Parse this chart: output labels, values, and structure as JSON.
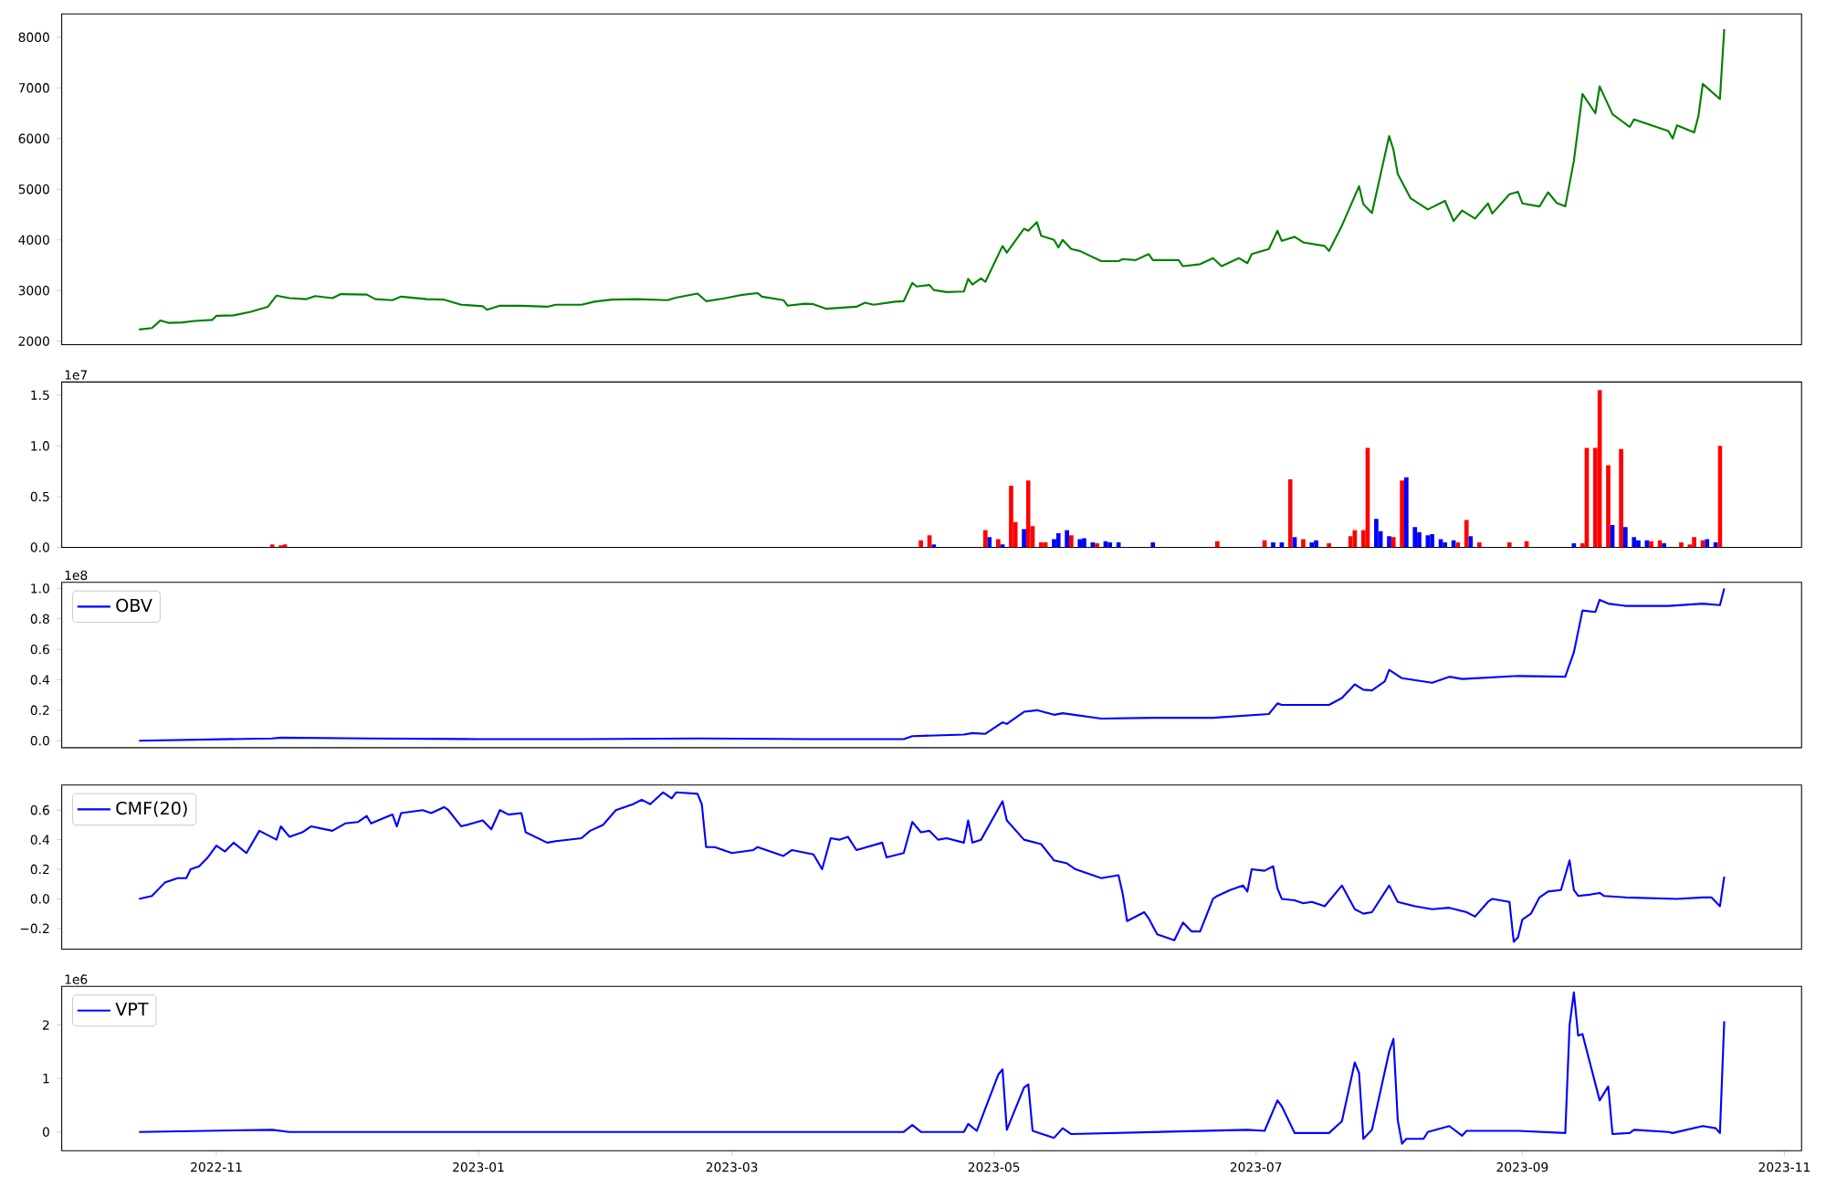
{
  "chart_data": [
    {
      "type": "line",
      "xlim": [
        "2022-09-26",
        "2023-11-05"
      ],
      "ylim": [
        1930,
        8460
      ],
      "yticks": [
        2000,
        3000,
        4000,
        5000,
        6000,
        7000,
        8000
      ],
      "tick_labels": "y",
      "x": [
        "2022-10-14",
        "2022-10-17",
        "2022-10-19",
        "2022-10-21",
        "2022-10-24",
        "2022-10-27",
        "2022-10-31",
        "2022-11-01",
        "2022-11-05",
        "2022-11-09",
        "2022-11-13",
        "2022-11-15",
        "2022-11-18",
        "2022-11-22",
        "2022-11-24",
        "2022-11-28",
        "2022-11-30",
        "2022-12-06",
        "2022-12-08",
        "2022-12-12",
        "2022-12-14",
        "2022-12-20",
        "2022-12-24",
        "2022-12-28",
        "2023-01-02",
        "2023-01-03",
        "2023-01-06",
        "2023-01-11",
        "2023-01-17",
        "2023-01-19",
        "2023-01-25",
        "2023-01-28",
        "2023-02-01",
        "2023-02-07",
        "2023-02-14",
        "2023-02-16",
        "2023-02-21",
        "2023-02-23",
        "2023-02-27",
        "2023-03-03",
        "2023-03-07",
        "2023-03-08",
        "2023-03-13",
        "2023-03-14",
        "2023-03-18",
        "2023-03-20",
        "2023-03-23",
        "2023-03-30",
        "2023-04-01",
        "2023-04-03",
        "2023-04-08",
        "2023-04-10",
        "2023-04-12",
        "2023-04-13",
        "2023-04-16",
        "2023-04-17",
        "2023-04-20",
        "2023-04-24",
        "2023-04-25",
        "2023-04-26",
        "2023-04-28",
        "2023-04-29",
        "2023-05-03",
        "2023-05-04",
        "2023-05-08",
        "2023-05-09",
        "2023-05-11",
        "2023-05-12",
        "2023-05-15",
        "2023-05-16",
        "2023-05-17",
        "2023-05-19",
        "2023-05-21",
        "2023-05-26",
        "2023-05-30",
        "2023-05-31",
        "2023-06-03",
        "2023-06-06",
        "2023-06-07",
        "2023-06-13",
        "2023-06-14",
        "2023-06-18",
        "2023-06-21",
        "2023-06-23",
        "2023-06-27",
        "2023-06-29",
        "2023-06-30",
        "2023-07-04",
        "2023-07-06",
        "2023-07-07",
        "2023-07-10",
        "2023-07-12",
        "2023-07-17",
        "2023-07-18",
        "2023-07-21",
        "2023-07-25",
        "2023-07-26",
        "2023-07-28",
        "2023-08-01",
        "2023-08-02",
        "2023-08-03",
        "2023-08-06",
        "2023-08-10",
        "2023-08-14",
        "2023-08-16",
        "2023-08-18",
        "2023-08-21",
        "2023-08-24",
        "2023-08-25",
        "2023-08-29",
        "2023-08-31",
        "2023-09-01",
        "2023-09-05",
        "2023-09-07",
        "2023-09-09",
        "2023-09-11",
        "2023-09-13",
        "2023-09-15",
        "2023-09-18",
        "2023-09-19",
        "2023-09-22",
        "2023-09-26",
        "2023-09-27",
        "2023-10-05",
        "2023-10-06",
        "2023-10-07",
        "2023-10-11",
        "2023-10-12",
        "2023-10-13",
        "2023-10-17",
        "2023-10-18"
      ],
      "series": [
        {
          "color": "#008000",
          "values": [
            2230,
            2260,
            2410,
            2360,
            2370,
            2400,
            2420,
            2500,
            2510,
            2580,
            2680,
            2900,
            2850,
            2830,
            2890,
            2850,
            2930,
            2920,
            2830,
            2810,
            2880,
            2830,
            2820,
            2720,
            2690,
            2620,
            2700,
            2700,
            2680,
            2720,
            2720,
            2780,
            2820,
            2830,
            2810,
            2860,
            2940,
            2790,
            2840,
            2910,
            2950,
            2880,
            2810,
            2700,
            2740,
            2730,
            2640,
            2680,
            2760,
            2720,
            2780,
            2790,
            3150,
            3080,
            3110,
            3010,
            2970,
            2980,
            3230,
            3120,
            3240,
            3170,
            3880,
            3750,
            4220,
            4180,
            4350,
            4080,
            4000,
            3850,
            4000,
            3820,
            3780,
            3580,
            3580,
            3620,
            3600,
            3720,
            3600,
            3600,
            3480,
            3520,
            3640,
            3480,
            3640,
            3540,
            3720,
            3820,
            4180,
            3980,
            4060,
            3950,
            3880,
            3780,
            4280,
            5060,
            4700,
            4530,
            6050,
            5780,
            5300,
            4820,
            4600,
            4770,
            4370,
            4580,
            4420,
            4720,
            4520,
            4900,
            4950,
            4720,
            4660,
            4940,
            4730,
            4660,
            5560,
            6880,
            6500,
            7030,
            6480,
            6230,
            6380,
            6150,
            6000,
            6260,
            6120,
            6450,
            7080,
            6780,
            8160
          ]
        }
      ]
    },
    {
      "type": "bar",
      "xlim": [
        "2022-09-26",
        "2023-11-05"
      ],
      "ylim": [
        0,
        1.63
      ],
      "tick_labels": "y",
      "yticks": [
        {
          "value": 0,
          "label": "0.0"
        },
        0.5,
        {
          "value": 1,
          "label": "1.0"
        },
        1.5
      ],
      "annotations": [
        "1e7"
      ],
      "x": [
        "2022-11-14",
        "2022-11-16",
        "2022-11-17",
        "2023-04-14",
        "2023-04-16",
        "2023-04-17",
        "2023-04-29",
        "2023-04-30",
        "2023-05-02",
        "2023-05-03",
        "2023-05-05",
        "2023-05-06",
        "2023-05-08",
        "2023-05-09",
        "2023-05-10",
        "2023-05-12",
        "2023-05-13",
        "2023-05-15",
        "2023-05-16",
        "2023-05-18",
        "2023-05-19",
        "2023-05-21",
        "2023-05-22",
        "2023-05-24",
        "2023-05-25",
        "2023-05-27",
        "2023-05-28",
        "2023-05-30",
        "2023-06-07",
        "2023-06-22",
        "2023-07-03",
        "2023-07-05",
        "2023-07-07",
        "2023-07-09",
        "2023-07-10",
        "2023-07-12",
        "2023-07-14",
        "2023-07-15",
        "2023-07-18",
        "2023-07-23",
        "2023-07-24",
        "2023-07-26",
        "2023-07-27",
        "2023-07-29",
        "2023-07-30",
        "2023-08-01",
        "2023-08-02",
        "2023-08-04",
        "2023-08-05",
        "2023-08-07",
        "2023-08-08",
        "2023-08-10",
        "2023-08-11",
        "2023-08-13",
        "2023-08-14",
        "2023-08-16",
        "2023-08-17",
        "2023-08-19",
        "2023-08-20",
        "2023-08-22",
        "2023-08-29",
        "2023-09-02",
        "2023-09-13",
        "2023-09-15",
        "2023-09-16",
        "2023-09-18",
        "2023-09-19",
        "2023-09-21",
        "2023-09-22",
        "2023-09-24",
        "2023-09-25",
        "2023-09-27",
        "2023-09-28",
        "2023-09-30",
        "2023-10-01",
        "2023-10-03",
        "2023-10-04",
        "2023-10-08",
        "2023-10-10",
        "2023-10-11",
        "2023-10-13",
        "2023-10-14",
        "2023-10-16",
        "2023-10-17"
      ],
      "values": [
        0.03,
        0.02,
        0.03,
        0.07,
        0.12,
        0.03,
        0.17,
        0.1,
        0.08,
        0.03,
        0.61,
        0.25,
        0.18,
        0.66,
        0.21,
        0.05,
        0.05,
        0.08,
        0.14,
        0.17,
        0.12,
        0.08,
        0.09,
        0.05,
        0.04,
        0.06,
        0.05,
        0.05,
        0.05,
        0.06,
        0.07,
        0.05,
        0.05,
        0.67,
        0.1,
        0.08,
        0.05,
        0.07,
        0.04,
        0.11,
        0.17,
        0.17,
        0.98,
        0.28,
        0.16,
        0.11,
        0.1,
        0.66,
        0.69,
        0.2,
        0.15,
        0.12,
        0.13,
        0.08,
        0.05,
        0.07,
        0.05,
        0.27,
        0.11,
        0.05,
        0.05,
        0.06,
        0.04,
        0.04,
        0.98,
        0.98,
        1.55,
        0.81,
        0.22,
        0.97,
        0.2,
        0.1,
        0.07,
        0.07,
        0.06,
        0.07,
        0.04,
        0.05,
        0.03,
        0.1,
        0.07,
        0.08,
        0.05,
        1.0
      ],
      "colors": [
        "#ff0000",
        "#ff0000",
        "#ff0000",
        "#ff0000",
        "#ff0000",
        "#0000ff",
        "#ff0000",
        "#0000ff",
        "#ff0000",
        "#0000ff",
        "#ff0000",
        "#ff0000",
        "#0000ff",
        "#ff0000",
        "#ff0000",
        "#ff0000",
        "#ff0000",
        "#0000ff",
        "#0000ff",
        "#0000ff",
        "#ff0000",
        "#0000ff",
        "#0000ff",
        "#0000ff",
        "#ff0000",
        "#0000ff",
        "#0000ff",
        "#0000ff",
        "#0000ff",
        "#ff0000",
        "#ff0000",
        "#0000ff",
        "#0000ff",
        "#ff0000",
        "#0000ff",
        "#ff0000",
        "#0000ff",
        "#0000ff",
        "#ff0000",
        "#ff0000",
        "#ff0000",
        "#ff0000",
        "#ff0000",
        "#0000ff",
        "#0000ff",
        "#0000ff",
        "#ff0000",
        "#ff0000",
        "#0000ff",
        "#0000ff",
        "#0000ff",
        "#0000ff",
        "#0000ff",
        "#0000ff",
        "#0000ff",
        "#0000ff",
        "#ff0000",
        "#ff0000",
        "#0000ff",
        "#ff0000",
        "#ff0000",
        "#ff0000",
        "#0000ff",
        "#ff0000",
        "#ff0000",
        "#ff0000",
        "#ff0000",
        "#ff0000",
        "#0000ff",
        "#ff0000",
        "#0000ff",
        "#0000ff",
        "#0000ff",
        "#0000ff",
        "#ff0000",
        "#ff0000",
        "#0000ff",
        "#ff0000",
        "#ff0000",
        "#ff0000",
        "#ff0000",
        "#0000ff",
        "#0000ff",
        "#ff0000"
      ]
    },
    {
      "type": "line",
      "xlim": [
        "2022-09-26",
        "2023-11-05"
      ],
      "ylim": [
        -0.046,
        1.04
      ],
      "tick_labels": "y",
      "legend": "top left",
      "yticks": [
        {
          "value": 0,
          "label": "0.0"
        },
        0.2,
        0.4,
        0.6,
        0.8,
        {
          "value": 1,
          "label": "1.0"
        }
      ],
      "annotations": [
        "1e8"
      ],
      "x": [
        "2022-10-14",
        "2022-11-14",
        "2022-11-16",
        "2022-12-06",
        "2023-01-01",
        "2023-01-25",
        "2023-02-22",
        "2023-03-20",
        "2023-04-10",
        "2023-04-12",
        "2023-04-24",
        "2023-04-26",
        "2023-04-29",
        "2023-05-03",
        "2023-05-04",
        "2023-05-08",
        "2023-05-11",
        "2023-05-15",
        "2023-05-17",
        "2023-05-26",
        "2023-06-07",
        "2023-06-21",
        "2023-07-04",
        "2023-07-06",
        "2023-07-07",
        "2023-07-18",
        "2023-07-21",
        "2023-07-24",
        "2023-07-26",
        "2023-07-28",
        "2023-07-31",
        "2023-08-01",
        "2023-08-04",
        "2023-08-11",
        "2023-08-15",
        "2023-08-18",
        "2023-08-31",
        "2023-09-11",
        "2023-09-13",
        "2023-09-15",
        "2023-09-18",
        "2023-09-19",
        "2023-09-21",
        "2023-09-25",
        "2023-10-05",
        "2023-10-13",
        "2023-10-17",
        "2023-10-18"
      ],
      "series": [
        {
          "name": "OBV",
          "color": "#0000ff",
          "values": [
            0,
            0.015,
            0.02,
            0.015,
            0.01,
            0.01,
            0.015,
            0.01,
            0.01,
            0.03,
            0.04,
            0.05,
            0.045,
            0.12,
            0.11,
            0.19,
            0.2,
            0.17,
            0.18,
            0.145,
            0.15,
            0.15,
            0.175,
            0.245,
            0.235,
            0.235,
            0.28,
            0.37,
            0.335,
            0.33,
            0.39,
            0.465,
            0.41,
            0.38,
            0.42,
            0.405,
            0.425,
            0.42,
            0.58,
            0.855,
            0.845,
            0.925,
            0.9,
            0.885,
            0.885,
            0.9,
            0.89,
            1.0
          ]
        }
      ]
    },
    {
      "type": "line",
      "xlim": [
        "2022-09-26",
        "2023-11-05"
      ],
      "ylim": [
        -0.34,
        0.77
      ],
      "tick_labels": "y",
      "legend": "top left",
      "yticks": [
        {
          "value": -0.2,
          "label": "−0.2"
        },
        {
          "value": 0,
          "label": "0.0"
        },
        {
          "value": 0.2,
          "label": "0.2"
        },
        {
          "value": 0.4,
          "label": "0.4"
        },
        {
          "value": 0.6,
          "label": "0.6"
        }
      ],
      "x": [
        "2022-10-14",
        "2022-10-17",
        "2022-10-20",
        "2022-10-23",
        "2022-10-25",
        "2022-10-26",
        "2022-10-28",
        "2022-10-30",
        "2022-11-01",
        "2022-11-03",
        "2022-11-05",
        "2022-11-08",
        "2022-11-11",
        "2022-11-15",
        "2022-11-16",
        "2022-11-18",
        "2022-11-21",
        "2022-11-23",
        "2022-11-28",
        "2022-12-01",
        "2022-12-04",
        "2022-12-06",
        "2022-12-07",
        "2022-12-12",
        "2022-12-13",
        "2022-12-14",
        "2022-12-19",
        "2022-12-21",
        "2022-12-24",
        "2022-12-25",
        "2022-12-28",
        "2023-01-02",
        "2023-01-04",
        "2023-01-06",
        "2023-01-08",
        "2023-01-11",
        "2023-01-12",
        "2023-01-17",
        "2023-01-19",
        "2023-01-25",
        "2023-01-27",
        "2023-01-30",
        "2023-02-02",
        "2023-02-06",
        "2023-02-08",
        "2023-02-10",
        "2023-02-13",
        "2023-02-15",
        "2023-02-16",
        "2023-02-21",
        "2023-02-22",
        "2023-02-23",
        "2023-02-25",
        "2023-03-01",
        "2023-03-06",
        "2023-03-07",
        "2023-03-13",
        "2023-03-15",
        "2023-03-20",
        "2023-03-22",
        "2023-03-24",
        "2023-03-26",
        "2023-03-28",
        "2023-03-30",
        "2023-04-05",
        "2023-04-06",
        "2023-04-10",
        "2023-04-12",
        "2023-04-14",
        "2023-04-16",
        "2023-04-18",
        "2023-04-20",
        "2023-04-24",
        "2023-04-25",
        "2023-04-26",
        "2023-04-28",
        "2023-05-03",
        "2023-05-04",
        "2023-05-08",
        "2023-05-12",
        "2023-05-15",
        "2023-05-18",
        "2023-05-20",
        "2023-05-24",
        "2023-05-26",
        "2023-05-30",
        "2023-05-31",
        "2023-06-01",
        "2023-06-05",
        "2023-06-06",
        "2023-06-08",
        "2023-06-12",
        "2023-06-14",
        "2023-06-16",
        "2023-06-18",
        "2023-06-21",
        "2023-06-22",
        "2023-06-25",
        "2023-06-28",
        "2023-06-29",
        "2023-06-30",
        "2023-07-03",
        "2023-07-05",
        "2023-07-06",
        "2023-07-07",
        "2023-07-10",
        "2023-07-12",
        "2023-07-14",
        "2023-07-17",
        "2023-07-21",
        "2023-07-24",
        "2023-07-26",
        "2023-07-28",
        "2023-08-01",
        "2023-08-03",
        "2023-08-07",
        "2023-08-11",
        "2023-08-15",
        "2023-08-19",
        "2023-08-21",
        "2023-08-24",
        "2023-08-25",
        "2023-08-29",
        "2023-08-30",
        "2023-08-31",
        "2023-09-01",
        "2023-09-03",
        "2023-09-05",
        "2023-09-07",
        "2023-09-10",
        "2023-09-12",
        "2023-09-13",
        "2023-09-14",
        "2023-09-17",
        "2023-09-19",
        "2023-09-20",
        "2023-09-25",
        "2023-10-07",
        "2023-10-13",
        "2023-10-15",
        "2023-10-17",
        "2023-10-18"
      ],
      "series": [
        {
          "name": "CMF(20)",
          "color": "#0000ff",
          "values": [
            0.0,
            0.02,
            0.11,
            0.14,
            0.14,
            0.2,
            0.22,
            0.28,
            0.36,
            0.32,
            0.38,
            0.31,
            0.46,
            0.4,
            0.49,
            0.42,
            0.45,
            0.49,
            0.46,
            0.51,
            0.52,
            0.56,
            0.51,
            0.57,
            0.49,
            0.58,
            0.6,
            0.58,
            0.62,
            0.6,
            0.49,
            0.53,
            0.47,
            0.6,
            0.57,
            0.58,
            0.45,
            0.38,
            0.39,
            0.41,
            0.46,
            0.5,
            0.6,
            0.64,
            0.67,
            0.64,
            0.72,
            0.68,
            0.72,
            0.71,
            0.64,
            0.35,
            0.35,
            0.31,
            0.33,
            0.35,
            0.29,
            0.33,
            0.3,
            0.2,
            0.41,
            0.4,
            0.42,
            0.33,
            0.38,
            0.28,
            0.31,
            0.52,
            0.45,
            0.46,
            0.4,
            0.41,
            0.38,
            0.53,
            0.38,
            0.4,
            0.66,
            0.53,
            0.4,
            0.37,
            0.26,
            0.24,
            0.2,
            0.16,
            0.14,
            0.16,
            0.03,
            -0.15,
            -0.09,
            -0.13,
            -0.24,
            -0.28,
            -0.16,
            -0.22,
            -0.22,
            0.0,
            0.02,
            0.06,
            0.09,
            0.05,
            0.2,
            0.19,
            0.22,
            0.07,
            0.0,
            -0.01,
            -0.03,
            -0.02,
            -0.05,
            0.09,
            -0.07,
            -0.1,
            -0.09,
            0.09,
            -0.02,
            -0.05,
            -0.07,
            -0.06,
            -0.09,
            -0.12,
            -0.02,
            0.0,
            -0.02,
            -0.29,
            -0.26,
            -0.14,
            -0.1,
            0.01,
            0.05,
            0.06,
            0.26,
            0.06,
            0.02,
            0.03,
            0.04,
            0.02,
            0.01,
            0.0,
            0.01,
            0.01,
            -0.05,
            0.15
          ]
        }
      ]
    },
    {
      "type": "line",
      "xlim": [
        "2022-09-26",
        "2023-11-05"
      ],
      "ylim": [
        -0.35,
        2.72
      ],
      "legend": "top left",
      "yticks": [
        0,
        1,
        2
      ],
      "xticks": [
        {
          "value": "2022-11-01",
          "label": "2022-11"
        },
        {
          "value": "2023-01-01",
          "label": "2023-01"
        },
        {
          "value": "2023-03-01",
          "label": "2023-03"
        },
        {
          "value": "2023-05-01",
          "label": "2023-05"
        },
        {
          "value": "2023-07-01",
          "label": "2023-07"
        },
        {
          "value": "2023-09-01",
          "label": "2023-09"
        },
        {
          "value": "2023-11-01",
          "label": "2023-11"
        }
      ],
      "annotations": [
        "1e6"
      ],
      "x": [
        "2022-10-14",
        "2022-11-14",
        "2022-11-18",
        "2023-04-10",
        "2023-04-12",
        "2023-04-14",
        "2023-04-24",
        "2023-04-25",
        "2023-04-27",
        "2023-05-02",
        "2023-05-03",
        "2023-05-04",
        "2023-05-08",
        "2023-05-09",
        "2023-05-10",
        "2023-05-15",
        "2023-05-17",
        "2023-05-19",
        "2023-06-29",
        "2023-07-03",
        "2023-07-06",
        "2023-07-07",
        "2023-07-10",
        "2023-07-18",
        "2023-07-21",
        "2023-07-24",
        "2023-07-25",
        "2023-07-26",
        "2023-07-28",
        "2023-08-01",
        "2023-08-02",
        "2023-08-03",
        "2023-08-04",
        "2023-08-05",
        "2023-08-09",
        "2023-08-10",
        "2023-08-15",
        "2023-08-18",
        "2023-08-19",
        "2023-08-31",
        "2023-09-11",
        "2023-09-12",
        "2023-09-13",
        "2023-09-14",
        "2023-09-15",
        "2023-09-19",
        "2023-09-21",
        "2023-09-22",
        "2023-09-26",
        "2023-09-27",
        "2023-10-05",
        "2023-10-06",
        "2023-10-13",
        "2023-10-16",
        "2023-10-17",
        "2023-10-18"
      ],
      "series": [
        {
          "name": "VPT",
          "color": "#0000ff",
          "values": [
            0,
            0.04,
            0,
            0,
            0.13,
            0,
            0,
            0.15,
            0.02,
            1.07,
            1.17,
            0.04,
            0.83,
            0.89,
            0.02,
            -0.11,
            0.07,
            -0.04,
            0.04,
            0.02,
            0.59,
            0.48,
            -0.02,
            -0.02,
            0.2,
            1.3,
            1.1,
            -0.13,
            0.04,
            1.5,
            1.74,
            0.22,
            -0.22,
            -0.13,
            -0.13,
            0,
            0.11,
            -0.07,
            0.02,
            0.02,
            -0.02,
            2.0,
            2.61,
            1.8,
            1.83,
            0.59,
            0.85,
            -0.04,
            -0.02,
            0.04,
            0,
            -0.02,
            0.11,
            0.07,
            -0.02,
            2.07
          ]
        }
      ]
    }
  ]
}
